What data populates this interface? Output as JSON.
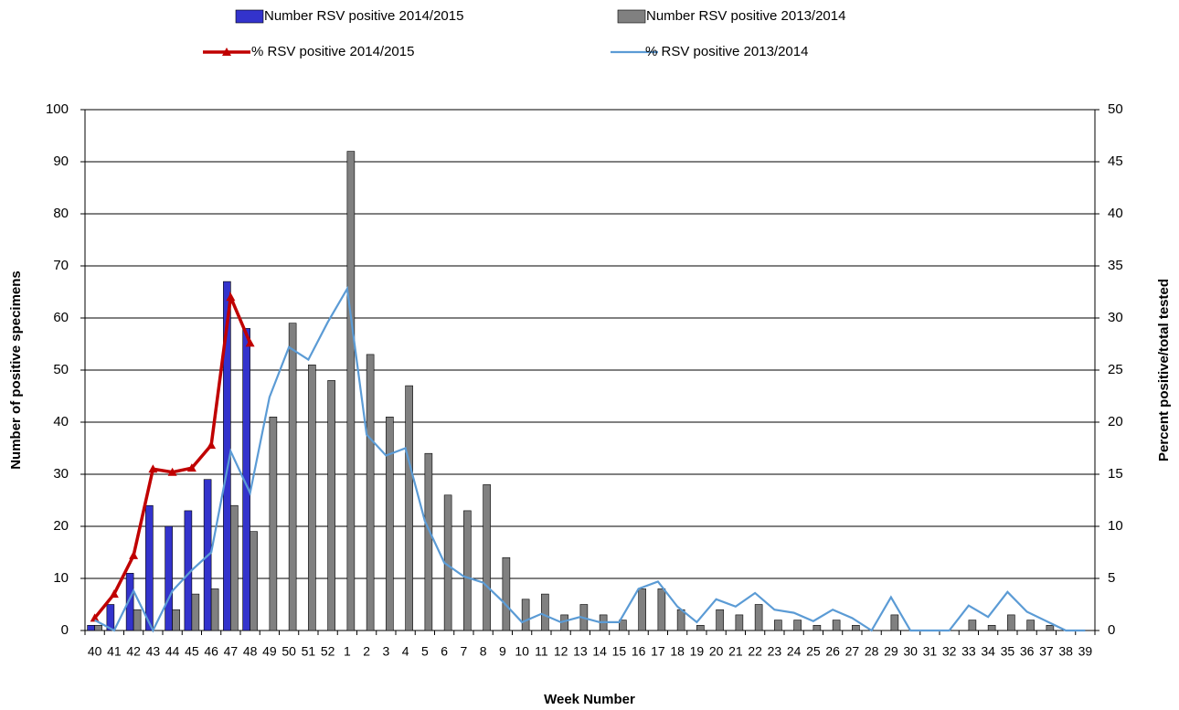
{
  "chart_data": {
    "type": "bar-line",
    "x_label": "Week Number",
    "y_label": "Number of positive specimens",
    "y2_label": "Percent positive/total tested",
    "categories": [
      "40",
      "41",
      "42",
      "43",
      "44",
      "45",
      "46",
      "47",
      "48",
      "49",
      "50",
      "51",
      "52",
      "1",
      "2",
      "3",
      "4",
      "5",
      "6",
      "7",
      "8",
      "9",
      "10",
      "11",
      "12",
      "13",
      "14",
      "15",
      "16",
      "17",
      "18",
      "19",
      "20",
      "21",
      "22",
      "23",
      "24",
      "25",
      "26",
      "27",
      "28",
      "29",
      "30",
      "31",
      "32",
      "33",
      "34",
      "35",
      "36",
      "37",
      "38",
      "39"
    ],
    "ylim": [
      0,
      100
    ],
    "yticks": [
      0,
      10,
      20,
      30,
      40,
      50,
      60,
      70,
      80,
      90,
      100
    ],
    "y2lim": [
      0,
      50
    ],
    "y2ticks": [
      0,
      5,
      10,
      15,
      20,
      25,
      30,
      35,
      40,
      45,
      50
    ],
    "grid": true,
    "series": [
      {
        "name": "Number RSV positive 2014/2015",
        "type": "bar",
        "color": "#3333cc",
        "values": [
          1,
          5,
          11,
          24,
          20,
          23,
          29,
          67,
          58,
          null,
          null,
          null,
          null,
          null,
          null,
          null,
          null,
          null,
          null,
          null,
          null,
          null,
          null,
          null,
          null,
          null,
          null,
          null,
          null,
          null,
          null,
          null,
          null,
          null,
          null,
          null,
          null,
          null,
          null,
          null,
          null,
          null,
          null,
          null,
          null,
          null,
          null,
          null,
          null,
          null,
          null,
          null
        ]
      },
      {
        "name": "Number RSV positive 2013/2014",
        "type": "bar",
        "color": "#808080",
        "values": [
          1,
          0,
          4,
          0,
          4,
          7,
          8,
          24,
          19,
          41,
          59,
          51,
          48,
          92,
          53,
          41,
          47,
          34,
          26,
          23,
          28,
          14,
          6,
          7,
          3,
          5,
          3,
          2,
          8,
          8,
          4,
          1,
          4,
          3,
          5,
          2,
          2,
          1,
          2,
          1,
          0,
          3,
          0,
          0,
          0,
          2,
          1,
          3,
          2,
          1,
          0,
          0
        ]
      },
      {
        "name": "% RSV positive 2014/2015",
        "type": "line",
        "axis": "y2",
        "color": "#c00000",
        "marker": "triangle",
        "values": [
          1.2,
          3.5,
          7.2,
          15.5,
          15.2,
          15.6,
          17.8,
          32,
          27.6,
          null,
          null,
          null,
          null,
          null,
          null,
          null,
          null,
          null,
          null,
          null,
          null,
          null,
          null,
          null,
          null,
          null,
          null,
          null,
          null,
          null,
          null,
          null,
          null,
          null,
          null,
          null,
          null,
          null,
          null,
          null,
          null,
          null,
          null,
          null,
          null,
          null,
          null,
          null,
          null,
          null,
          null,
          null
        ]
      },
      {
        "name": "% RSV positive 2013/2014",
        "type": "line",
        "axis": "y2",
        "color": "#5b9bd5",
        "values": [
          1,
          0,
          3.8,
          0,
          3.8,
          5.8,
          7.5,
          17.2,
          13.2,
          22.4,
          27.2,
          26,
          29.6,
          32.8,
          18.8,
          16.8,
          17.5,
          10.5,
          6.5,
          5.2,
          4.6,
          2.8,
          0.8,
          1.6,
          0.8,
          1.3,
          0.8,
          0.8,
          4,
          4.7,
          2.3,
          0.8,
          3,
          2.3,
          3.6,
          2,
          1.7,
          0.9,
          2,
          1.2,
          0,
          3.2,
          0,
          0,
          0,
          2.4,
          1.3,
          3.7,
          1.8,
          0.9,
          0,
          0
        ]
      }
    ]
  }
}
